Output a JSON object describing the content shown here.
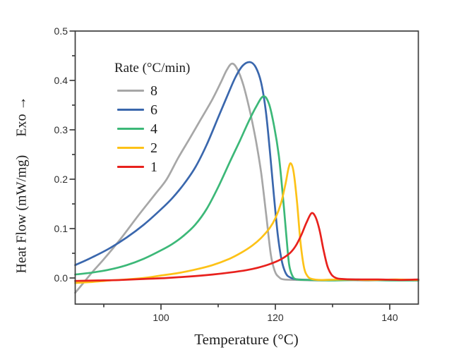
{
  "figure": {
    "background": "#ffffff",
    "frame_color": "#3d3d3d",
    "tick_color": "#3d3d3d",
    "text_color": "#1d1d1d"
  },
  "chart_data": {
    "type": "line",
    "title": "",
    "xlabel": "Temperature (°C)",
    "ylabel": "Heat Flow (mW/mg)",
    "exo_label": "Exo →",
    "xlim": [
      85,
      145
    ],
    "ylim": [
      -0.054,
      0.5
    ],
    "x_ticks_major": [
      100,
      120,
      140
    ],
    "x_ticks_minor": [
      90,
      110,
      130
    ],
    "y_ticks_major": [
      0.0,
      0.1,
      0.2,
      0.3,
      0.4,
      0.5
    ],
    "y_ticks_minor": [
      0.05,
      0.15,
      0.25,
      0.35,
      0.45
    ],
    "grid": false,
    "legend": {
      "title": "Rate (°C/min)",
      "position": "upper-left-inside"
    },
    "series": [
      {
        "name": "8",
        "color": "#a7a7a7",
        "points": [
          [
            85,
            -0.03
          ],
          [
            86.5,
            -0.009
          ],
          [
            88,
            0.012
          ],
          [
            90,
            0.038
          ],
          [
            93,
            0.08
          ],
          [
            96,
            0.126
          ],
          [
            99,
            0.17
          ],
          [
            101,
            0.2
          ],
          [
            103,
            0.243
          ],
          [
            105,
            0.282
          ],
          [
            107,
            0.322
          ],
          [
            109,
            0.362
          ],
          [
            110.5,
            0.397
          ],
          [
            111.5,
            0.421
          ],
          [
            112.4,
            0.434
          ],
          [
            113.3,
            0.424
          ],
          [
            114.4,
            0.391
          ],
          [
            115.6,
            0.335
          ],
          [
            116.6,
            0.278
          ],
          [
            117.5,
            0.214
          ],
          [
            118.4,
            0.128
          ],
          [
            119.2,
            0.048
          ],
          [
            119.9,
            0.014
          ],
          [
            120.6,
            0.002
          ],
          [
            121.5,
            -0.003
          ],
          [
            124,
            -0.004
          ],
          [
            128,
            -0.005
          ],
          [
            132,
            -0.004
          ],
          [
            136,
            -0.005
          ],
          [
            140,
            -0.004
          ],
          [
            145,
            -0.005
          ]
        ]
      },
      {
        "name": "6",
        "color": "#3a67ad",
        "points": [
          [
            85,
            0.026
          ],
          [
            88,
            0.042
          ],
          [
            91,
            0.06
          ],
          [
            94,
            0.082
          ],
          [
            97,
            0.108
          ],
          [
            100,
            0.139
          ],
          [
            102,
            0.162
          ],
          [
            104,
            0.19
          ],
          [
            106,
            0.224
          ],
          [
            108,
            0.27
          ],
          [
            110,
            0.325
          ],
          [
            111.5,
            0.366
          ],
          [
            113,
            0.406
          ],
          [
            114.3,
            0.43
          ],
          [
            115.6,
            0.437
          ],
          [
            116.6,
            0.426
          ],
          [
            117.5,
            0.396
          ],
          [
            118.3,
            0.341
          ],
          [
            119,
            0.262
          ],
          [
            119.7,
            0.172
          ],
          [
            120.4,
            0.09
          ],
          [
            121.1,
            0.036
          ],
          [
            121.8,
            0.01
          ],
          [
            122.6,
            0.001
          ],
          [
            124,
            -0.003
          ],
          [
            128,
            -0.004
          ],
          [
            133,
            -0.003
          ],
          [
            138,
            -0.004
          ],
          [
            145,
            -0.004
          ]
        ]
      },
      {
        "name": "4",
        "color": "#3cb878",
        "points": [
          [
            85,
            0.007
          ],
          [
            88,
            0.011
          ],
          [
            91,
            0.017
          ],
          [
            94,
            0.026
          ],
          [
            97,
            0.039
          ],
          [
            100,
            0.056
          ],
          [
            102,
            0.069
          ],
          [
            104,
            0.086
          ],
          [
            106,
            0.108
          ],
          [
            108,
            0.14
          ],
          [
            110,
            0.184
          ],
          [
            112,
            0.234
          ],
          [
            113.8,
            0.278
          ],
          [
            115.3,
            0.316
          ],
          [
            116.6,
            0.346
          ],
          [
            117.9,
            0.368
          ],
          [
            118.9,
            0.352
          ],
          [
            119.8,
            0.306
          ],
          [
            120.6,
            0.248
          ],
          [
            121.3,
            0.168
          ],
          [
            121.9,
            0.088
          ],
          [
            122.4,
            0.028
          ],
          [
            123,
            0.004
          ],
          [
            123.8,
            -0.003
          ],
          [
            126,
            -0.004
          ],
          [
            130,
            -0.005
          ],
          [
            135,
            -0.004
          ],
          [
            140,
            -0.005
          ],
          [
            145,
            -0.005
          ]
        ]
      },
      {
        "name": "2",
        "color": "#fdc217",
        "points": [
          [
            85,
            -0.01
          ],
          [
            88,
            -0.008
          ],
          [
            91,
            -0.005
          ],
          [
            94,
            -0.003
          ],
          [
            97,
            0.0
          ],
          [
            100,
            0.005
          ],
          [
            103,
            0.01
          ],
          [
            106,
            0.017
          ],
          [
            109,
            0.026
          ],
          [
            112,
            0.039
          ],
          [
            114,
            0.051
          ],
          [
            116,
            0.066
          ],
          [
            117.5,
            0.081
          ],
          [
            119,
            0.101
          ],
          [
            120,
            0.121
          ],
          [
            121,
            0.152
          ],
          [
            121.8,
            0.192
          ],
          [
            122.3,
            0.222
          ],
          [
            122.7,
            0.232
          ],
          [
            123.2,
            0.214
          ],
          [
            123.8,
            0.152
          ],
          [
            124.4,
            0.072
          ],
          [
            125,
            0.022
          ],
          [
            125.6,
            0.004
          ],
          [
            126.4,
            -0.002
          ],
          [
            128,
            -0.004
          ],
          [
            132,
            -0.003
          ],
          [
            137,
            -0.004
          ],
          [
            141,
            -0.003
          ],
          [
            145,
            -0.004
          ]
        ]
      },
      {
        "name": "1",
        "color": "#e8211d",
        "points": [
          [
            85,
            -0.006
          ],
          [
            89,
            -0.005
          ],
          [
            93,
            -0.004
          ],
          [
            97,
            -0.002
          ],
          [
            101,
            0.0
          ],
          [
            105,
            0.003
          ],
          [
            109,
            0.007
          ],
          [
            112,
            0.011
          ],
          [
            115,
            0.016
          ],
          [
            117,
            0.021
          ],
          [
            119,
            0.028
          ],
          [
            121,
            0.038
          ],
          [
            122.5,
            0.05
          ],
          [
            123.5,
            0.064
          ],
          [
            124.5,
            0.086
          ],
          [
            125.4,
            0.111
          ],
          [
            126.3,
            0.131
          ],
          [
            127,
            0.124
          ],
          [
            127.7,
            0.098
          ],
          [
            128.4,
            0.058
          ],
          [
            129.1,
            0.024
          ],
          [
            129.8,
            0.007
          ],
          [
            130.6,
            0.0
          ],
          [
            131.6,
            -0.002
          ],
          [
            134,
            -0.003
          ],
          [
            138,
            -0.003
          ],
          [
            142,
            -0.004
          ],
          [
            145,
            -0.003
          ]
        ]
      }
    ]
  }
}
